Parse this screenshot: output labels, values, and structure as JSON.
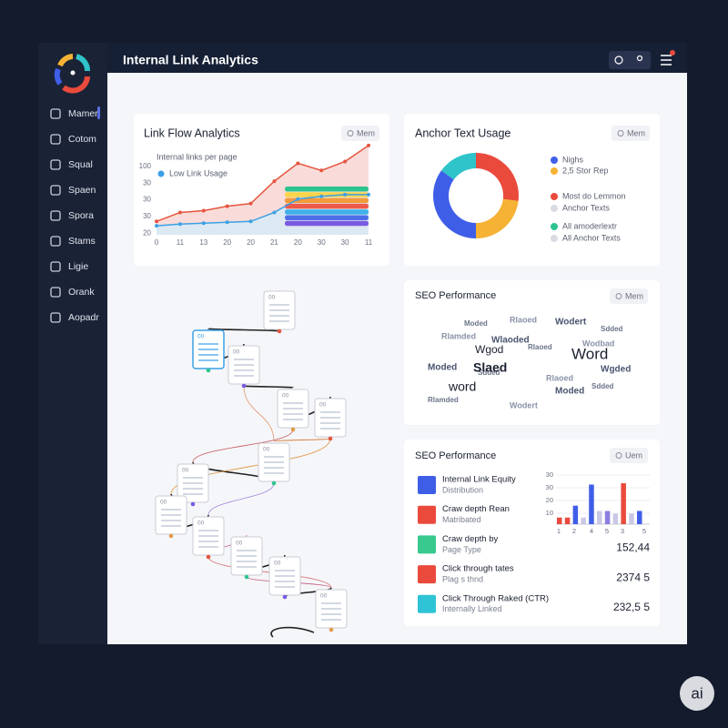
{
  "header": {
    "title": "Internal Link Analytics"
  },
  "sidebar": {
    "items": [
      "Mamer",
      "Cotom",
      "Squal",
      "Spaen",
      "Spora",
      "Stams",
      "Ligie",
      "Orank",
      "Aopadr"
    ]
  },
  "link_flow": {
    "title": "Link Flow Analytics",
    "button": "Mem",
    "subtitle": "Internal links per page",
    "legend": "Low Link Usage",
    "y_labels": [
      "100",
      "30",
      "30",
      "30",
      "20"
    ],
    "x_labels": [
      "0",
      "11",
      "13",
      "20",
      "20",
      "21",
      "20",
      "30",
      "30",
      "11"
    ],
    "ylim": [
      0,
      110
    ],
    "series": [
      {
        "color": "#e5553f",
        "values": [
          15,
          25,
          27,
          32,
          35,
          60,
          80,
          72,
          82,
          100
        ]
      },
      {
        "color": "#3ba0e6",
        "values": [
          10,
          12,
          13,
          14,
          15,
          25,
          40,
          43,
          45,
          45
        ]
      }
    ]
  },
  "anchor": {
    "title": "Anchor Text Usage",
    "button": "Mem",
    "segments": [
      {
        "color": "#ea4a3c",
        "value": 27
      },
      {
        "color": "#f5b234",
        "value": 23
      },
      {
        "color": "#3f5ee8",
        "value": 35
      },
      {
        "color": "#2ec4c9",
        "value": 15
      }
    ],
    "legend": [
      {
        "color": "#3f5ee8",
        "label": "Nighs"
      },
      {
        "color": "#f5b234",
        "label": "2,5 Stor Rep"
      },
      {
        "color": "#ea4a3c",
        "label": "Most do Lemmon"
      },
      {
        "color": "#d8dbe2",
        "label": "Anchor Texts"
      },
      {
        "color": "#2ec48f",
        "label": "All amoderlextr"
      },
      {
        "color": "#d8dbe2",
        "label": "All Anchor Texts"
      }
    ]
  },
  "word_cloud": {
    "title": "SEO Performance",
    "button": "Mem",
    "big_words": [
      "Word",
      "Slaed",
      "word",
      "Wgod"
    ],
    "words": [
      "Moded",
      "Rlaoed",
      "Wodert",
      "Sdded",
      "Rlamded",
      "Wlaoded",
      "Rlaoed",
      "Wodbad",
      "Moded",
      "Sdded",
      "Rlaoed",
      "Wgded",
      "Rlamded",
      "Wodert",
      "Moded",
      "Sdded"
    ]
  },
  "seo": {
    "title": "SEO Performance",
    "button": "Uem",
    "items": [
      {
        "color": "#3f5ee8",
        "label": "Internal Link Equity",
        "sub": "Distribution"
      },
      {
        "color": "#ea4a3c",
        "label": "Craw depth Rean",
        "sub": "Matribated"
      },
      {
        "color": "#38c98f",
        "label": "Craw depth by",
        "sub": "Page Type",
        "value": "152,44"
      },
      {
        "color": "#ea4a3c",
        "label": "Click through tates",
        "sub": "Plag s thnd",
        "value": "2374 5"
      },
      {
        "color": "#2ec4d6",
        "label": "Click Through Raked (CTR)",
        "sub": "Internally Linked",
        "value": "232,5 5"
      }
    ],
    "bar_chart": {
      "ylim": [
        0,
        40
      ],
      "y_labels": [
        "30",
        "30",
        "20",
        "10"
      ],
      "x_labels": [
        "1",
        "2",
        "4",
        "5",
        "3",
        "5"
      ],
      "values": [
        5,
        5,
        14,
        5,
        30,
        10,
        10,
        8,
        31,
        8,
        10
      ],
      "colors": [
        "#ea4a3c",
        "#ea4a3c",
        "#3f5ee8",
        "#c9c9e6",
        "#3f5ee8",
        "#c9c9e6",
        "#8a7ee0",
        "#c9c9e6",
        "#ea4a3c",
        "#c9c9e6",
        "#3f5ee8"
      ]
    }
  },
  "doc_label": "00",
  "badge": "ai"
}
